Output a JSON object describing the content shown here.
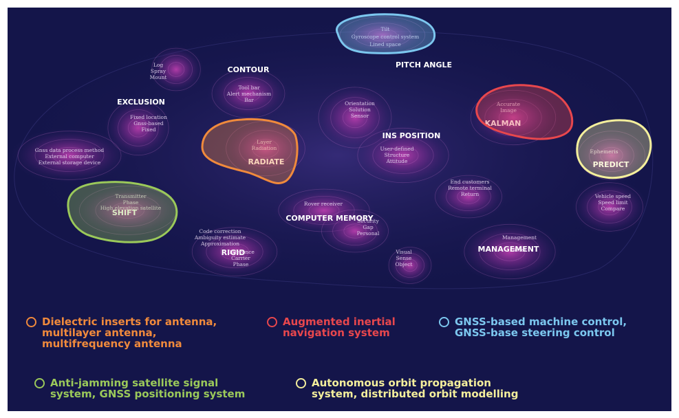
{
  "colors": {
    "background": "#14154a",
    "orange": "#f08a3c",
    "red": "#e8474d",
    "blue": "#7cc7ef",
    "green": "#9bc95a",
    "yellow": "#f4ef9c"
  },
  "terms": [
    {
      "label": "CONTOUR",
      "kind": "keyword"
    },
    {
      "label": "PITCH ANGLE",
      "kind": "keyword"
    },
    {
      "label": "EXCLUSION",
      "kind": "keyword"
    },
    {
      "label": "KALMAN",
      "kind": "keyword"
    },
    {
      "label": "INS POSITION",
      "kind": "keyword"
    },
    {
      "label": "RADIATE",
      "kind": "keyword"
    },
    {
      "label": "PREDICT",
      "kind": "keyword"
    },
    {
      "label": "SHIFT",
      "kind": "keyword"
    },
    {
      "label": "COMPUTER MEMORY",
      "kind": "keyword"
    },
    {
      "label": "RIGID",
      "kind": "keyword"
    },
    {
      "label": "MANAGEMENT",
      "kind": "keyword"
    },
    {
      "label": "Tilt",
      "kind": "minor"
    },
    {
      "label": "Gyroscope control system",
      "kind": "minor"
    },
    {
      "label": "Lined space",
      "kind": "minor"
    },
    {
      "label": "Log",
      "kind": "minor"
    },
    {
      "label": "Spray",
      "kind": "minor"
    },
    {
      "label": "Mount",
      "kind": "minor"
    },
    {
      "label": "Tool bar",
      "kind": "minor"
    },
    {
      "label": "Alert mechanism",
      "kind": "minor"
    },
    {
      "label": "Bar",
      "kind": "minor"
    },
    {
      "label": "Orientation",
      "kind": "minor"
    },
    {
      "label": "Solution",
      "kind": "minor"
    },
    {
      "label": "Sensor",
      "kind": "minor"
    },
    {
      "label": "Accurate",
      "kind": "minor"
    },
    {
      "label": "Image",
      "kind": "minor"
    },
    {
      "label": "Fixed location",
      "kind": "minor"
    },
    {
      "label": "Gnss-based",
      "kind": "minor"
    },
    {
      "label": "Fixed",
      "kind": "minor"
    },
    {
      "label": "Layer",
      "kind": "minor"
    },
    {
      "label": "Radiation",
      "kind": "minor"
    },
    {
      "label": "User-defined",
      "kind": "minor"
    },
    {
      "label": "Structure",
      "kind": "minor"
    },
    {
      "label": "Attitude",
      "kind": "minor"
    },
    {
      "label": "Ephemeris",
      "kind": "minor"
    },
    {
      "label": "Gnss data process method",
      "kind": "minor"
    },
    {
      "label": "External computer",
      "kind": "minor"
    },
    {
      "label": "External storage device",
      "kind": "minor"
    },
    {
      "label": "End customers",
      "kind": "minor"
    },
    {
      "label": "Remote terminal",
      "kind": "minor"
    },
    {
      "label": "Return",
      "kind": "minor"
    },
    {
      "label": "Transmitter",
      "kind": "minor"
    },
    {
      "label": "Phase",
      "kind": "minor"
    },
    {
      "label": "High elevation satellite",
      "kind": "minor"
    },
    {
      "label": "Vehicle speed",
      "kind": "minor"
    },
    {
      "label": "Speed limit",
      "kind": "minor"
    },
    {
      "label": "Compare",
      "kind": "minor"
    },
    {
      "label": "Rover receiver",
      "kind": "minor"
    },
    {
      "label": "Security",
      "kind": "minor"
    },
    {
      "label": "Gap",
      "kind": "minor"
    },
    {
      "label": "Personal",
      "kind": "minor"
    },
    {
      "label": "Code correction",
      "kind": "minor"
    },
    {
      "label": "Ambiguity estimate",
      "kind": "minor"
    },
    {
      "label": "Approximation",
      "kind": "minor"
    },
    {
      "label": "Difference",
      "kind": "minor"
    },
    {
      "label": "Carrier",
      "kind": "minor"
    },
    {
      "label": "Phase",
      "kind": "minor"
    },
    {
      "label": "Management",
      "kind": "minor"
    },
    {
      "label": "Asset",
      "kind": "minor"
    },
    {
      "label": "Visual",
      "kind": "minor"
    },
    {
      "label": "Sense",
      "kind": "minor"
    },
    {
      "label": "Object",
      "kind": "minor"
    }
  ],
  "clusters": [
    {
      "name": "gnss-machine-control",
      "color": "blue"
    },
    {
      "name": "augmented-inertial-navigation",
      "color": "red"
    },
    {
      "name": "antenna",
      "color": "orange"
    },
    {
      "name": "orbit-propagation",
      "color": "yellow"
    },
    {
      "name": "anti-jamming",
      "color": "green"
    }
  ],
  "legend": [
    {
      "color": "orange",
      "text": "Dielectric inserts for antenna,\nmultilayer antenna,\nmultifrequency antenna"
    },
    {
      "color": "red",
      "text": "Augmented inertial\nnavigation system"
    },
    {
      "color": "blue",
      "text": "GNSS-based machine control,\nGNSS-base steering control"
    },
    {
      "color": "green",
      "text": "Anti-jamming satellite signal\nsystem, GNSS positioning system"
    },
    {
      "color": "yellow",
      "text": "Autonomous orbit propagation\nsystem, distributed orbit modelling"
    }
  ]
}
